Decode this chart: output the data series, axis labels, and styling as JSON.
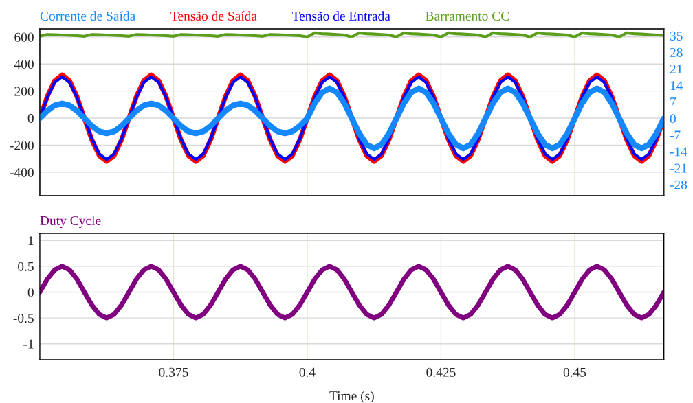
{
  "chart_data": [
    {
      "type": "line",
      "legend": "top",
      "grid": true,
      "tick_labels": "y",
      "x": [
        0.35,
        0.35139,
        0.35278,
        0.35417,
        0.35556,
        0.35694,
        0.35833,
        0.35972,
        0.36111,
        0.3625,
        0.36389,
        0.36528,
        0.36667,
        0.36806,
        0.36944,
        0.37083,
        0.37222,
        0.37361,
        0.375,
        0.37639,
        0.37778,
        0.37917,
        0.38056,
        0.38194,
        0.38333,
        0.38472,
        0.38611,
        0.3875,
        0.38889,
        0.39028,
        0.39167,
        0.39306,
        0.39444,
        0.39583,
        0.39722,
        0.39861,
        0.4,
        0.40139,
        0.40278,
        0.40417,
        0.40556,
        0.40694,
        0.40833,
        0.40972,
        0.41111,
        0.4125,
        0.41389,
        0.41528,
        0.41667,
        0.41806,
        0.41944,
        0.42083,
        0.42222,
        0.42361,
        0.425,
        0.42639,
        0.42778,
        0.42917,
        0.43056,
        0.43194,
        0.43333,
        0.43472,
        0.43611,
        0.4375,
        0.43889,
        0.44028,
        0.44167,
        0.44306,
        0.44444,
        0.44583,
        0.44722,
        0.44861,
        0.45,
        0.45139,
        0.45278,
        0.45417,
        0.45556,
        0.45694,
        0.45833,
        0.45972,
        0.46111,
        0.4625,
        0.46389,
        0.46528,
        0.46667
      ],
      "xlim": [
        0.35,
        0.46667
      ],
      "xticks": [
        0.375,
        0.4,
        0.425,
        0.45
      ],
      "ylim": [
        -573,
        660
      ],
      "yticks": [
        -400,
        -200,
        0,
        200,
        400,
        600
      ],
      "y2lim": [
        -32.7,
        37.9
      ],
      "y2ticks": [
        -28,
        -21,
        -14,
        -7,
        0,
        7,
        14,
        21,
        28,
        35
      ],
      "series": [
        {
          "name": "Corrente de Saída",
          "color": "#1489ff",
          "axis": "y2",
          "values": [
            0,
            3.2,
            5.5,
            6.3,
            5.5,
            3.2,
            0,
            -3.2,
            -5.5,
            -6.3,
            -5.5,
            -3.2,
            0,
            3.2,
            5.5,
            6.3,
            5.5,
            3.2,
            0,
            -3.2,
            -5.5,
            -6.3,
            -5.5,
            -3.2,
            0,
            3.2,
            5.5,
            6.3,
            5.5,
            3.2,
            0,
            -3.2,
            -5.5,
            -6.3,
            -5.5,
            -3.2,
            0,
            6.4,
            11,
            12.7,
            11,
            6.4,
            0,
            -6.4,
            -11,
            -12.7,
            -11,
            -6.4,
            0,
            6.4,
            11,
            12.7,
            11,
            6.4,
            0,
            -6.4,
            -11,
            -12.7,
            -11,
            -6.4,
            0,
            6.4,
            11,
            12.7,
            11,
            6.4,
            0,
            -6.4,
            -11,
            -12.7,
            -11,
            -6.4,
            0,
            6.4,
            11,
            12.7,
            11,
            6.4,
            0,
            -6.4,
            -11,
            -12.7,
            -11,
            -6.4,
            0
          ]
        },
        {
          "name": "Tensão de Saída",
          "color": "#ff0000",
          "values": [
            0,
            160,
            277,
            320,
            277,
            160,
            0,
            -160,
            -277,
            -320,
            -277,
            -160,
            0,
            160,
            277,
            320,
            277,
            160,
            0,
            -160,
            -277,
            -320,
            -277,
            -160,
            0,
            160,
            277,
            320,
            277,
            160,
            0,
            -160,
            -277,
            -320,
            -277,
            -160,
            0,
            160,
            277,
            320,
            277,
            160,
            0,
            -160,
            -277,
            -320,
            -277,
            -160,
            0,
            160,
            277,
            320,
            277,
            160,
            0,
            -160,
            -277,
            -320,
            -277,
            -160,
            0,
            160,
            277,
            320,
            277,
            160,
            0,
            -160,
            -277,
            -320,
            -277,
            -160,
            0,
            160,
            277,
            320,
            277,
            160,
            0,
            -160,
            -277,
            -320,
            -277,
            -160,
            0
          ]
        },
        {
          "name": "Tensão de Entrada",
          "color": "#0000ff",
          "values": [
            0,
            153,
            264,
            305,
            264,
            153,
            0,
            -153,
            -264,
            -305,
            -264,
            -153,
            0,
            153,
            264,
            305,
            264,
            153,
            0,
            -153,
            -264,
            -305,
            -264,
            -153,
            0,
            153,
            264,
            305,
            264,
            153,
            0,
            -153,
            -264,
            -305,
            -264,
            -153,
            0,
            153,
            264,
            305,
            264,
            153,
            0,
            -153,
            -264,
            -305,
            -264,
            -153,
            0,
            153,
            264,
            305,
            264,
            153,
            0,
            -153,
            -264,
            -305,
            -264,
            -153,
            0,
            153,
            264,
            305,
            264,
            153,
            0,
            -153,
            -264,
            -305,
            -264,
            -153,
            0,
            153,
            264,
            305,
            264,
            153,
            0,
            -153,
            -264,
            -305,
            -264,
            -153,
            0
          ]
        },
        {
          "name": "Barramento CC",
          "color": "#5a9e1c",
          "values": [
            605,
            618,
            616,
            614,
            612,
            609,
            605,
            618,
            616,
            614,
            612,
            609,
            605,
            618,
            616,
            614,
            612,
            609,
            605,
            618,
            616,
            614,
            612,
            609,
            605,
            618,
            616,
            614,
            612,
            609,
            605,
            618,
            616,
            614,
            612,
            609,
            600,
            630,
            624,
            621,
            618,
            614,
            600,
            630,
            624,
            621,
            618,
            614,
            600,
            630,
            624,
            621,
            618,
            614,
            600,
            630,
            624,
            621,
            618,
            614,
            600,
            630,
            624,
            621,
            618,
            614,
            600,
            630,
            624,
            621,
            618,
            614,
            600,
            630,
            624,
            621,
            618,
            614,
            600,
            630,
            624,
            621,
            618,
            614,
            612
          ]
        }
      ]
    },
    {
      "type": "line",
      "legend": "top",
      "grid": true,
      "xlabel": "Time (s)",
      "x": [
        0.35,
        0.35139,
        0.35278,
        0.35417,
        0.35556,
        0.35694,
        0.35833,
        0.35972,
        0.36111,
        0.3625,
        0.36389,
        0.36528,
        0.36667,
        0.36806,
        0.36944,
        0.37083,
        0.37222,
        0.37361,
        0.375,
        0.37639,
        0.37778,
        0.37917,
        0.38056,
        0.38194,
        0.38333,
        0.38472,
        0.38611,
        0.3875,
        0.38889,
        0.39028,
        0.39167,
        0.39306,
        0.39444,
        0.39583,
        0.39722,
        0.39861,
        0.4,
        0.40139,
        0.40278,
        0.40417,
        0.40556,
        0.40694,
        0.40833,
        0.40972,
        0.41111,
        0.4125,
        0.41389,
        0.41528,
        0.41667,
        0.41806,
        0.41944,
        0.42083,
        0.42222,
        0.42361,
        0.425,
        0.42639,
        0.42778,
        0.42917,
        0.43056,
        0.43194,
        0.43333,
        0.43472,
        0.43611,
        0.4375,
        0.43889,
        0.44028,
        0.44167,
        0.44306,
        0.44444,
        0.44583,
        0.44722,
        0.44861,
        0.45,
        0.45139,
        0.45278,
        0.45417,
        0.45556,
        0.45694,
        0.45833,
        0.45972,
        0.46111,
        0.4625,
        0.46389,
        0.46528,
        0.46667
      ],
      "xlim": [
        0.35,
        0.46667
      ],
      "xticks": [
        0.375,
        0.4,
        0.425,
        0.45
      ],
      "ylim": [
        -1.31,
        1.136
      ],
      "yticks": [
        -1,
        -0.5,
        0,
        0.5,
        1
      ],
      "series": [
        {
          "name": "Duty Cycle",
          "color": "#800080",
          "values": [
            0,
            0.25,
            0.43,
            0.5,
            0.43,
            0.25,
            0,
            -0.25,
            -0.43,
            -0.5,
            -0.43,
            -0.25,
            0,
            0.25,
            0.43,
            0.5,
            0.43,
            0.25,
            0,
            -0.25,
            -0.43,
            -0.5,
            -0.43,
            -0.25,
            0,
            0.25,
            0.43,
            0.5,
            0.43,
            0.25,
            0,
            -0.25,
            -0.43,
            -0.5,
            -0.43,
            -0.25,
            0,
            0.25,
            0.43,
            0.5,
            0.43,
            0.25,
            0,
            -0.25,
            -0.43,
            -0.5,
            -0.43,
            -0.25,
            0,
            0.25,
            0.43,
            0.5,
            0.43,
            0.25,
            0,
            -0.25,
            -0.43,
            -0.5,
            -0.43,
            -0.25,
            0,
            0.25,
            0.43,
            0.5,
            0.43,
            0.25,
            0,
            -0.25,
            -0.43,
            -0.5,
            -0.43,
            -0.25,
            0,
            0.25,
            0.43,
            0.5,
            0.43,
            0.25,
            0,
            -0.25,
            -0.43,
            -0.5,
            -0.43,
            -0.25,
            0
          ]
        }
      ]
    }
  ]
}
